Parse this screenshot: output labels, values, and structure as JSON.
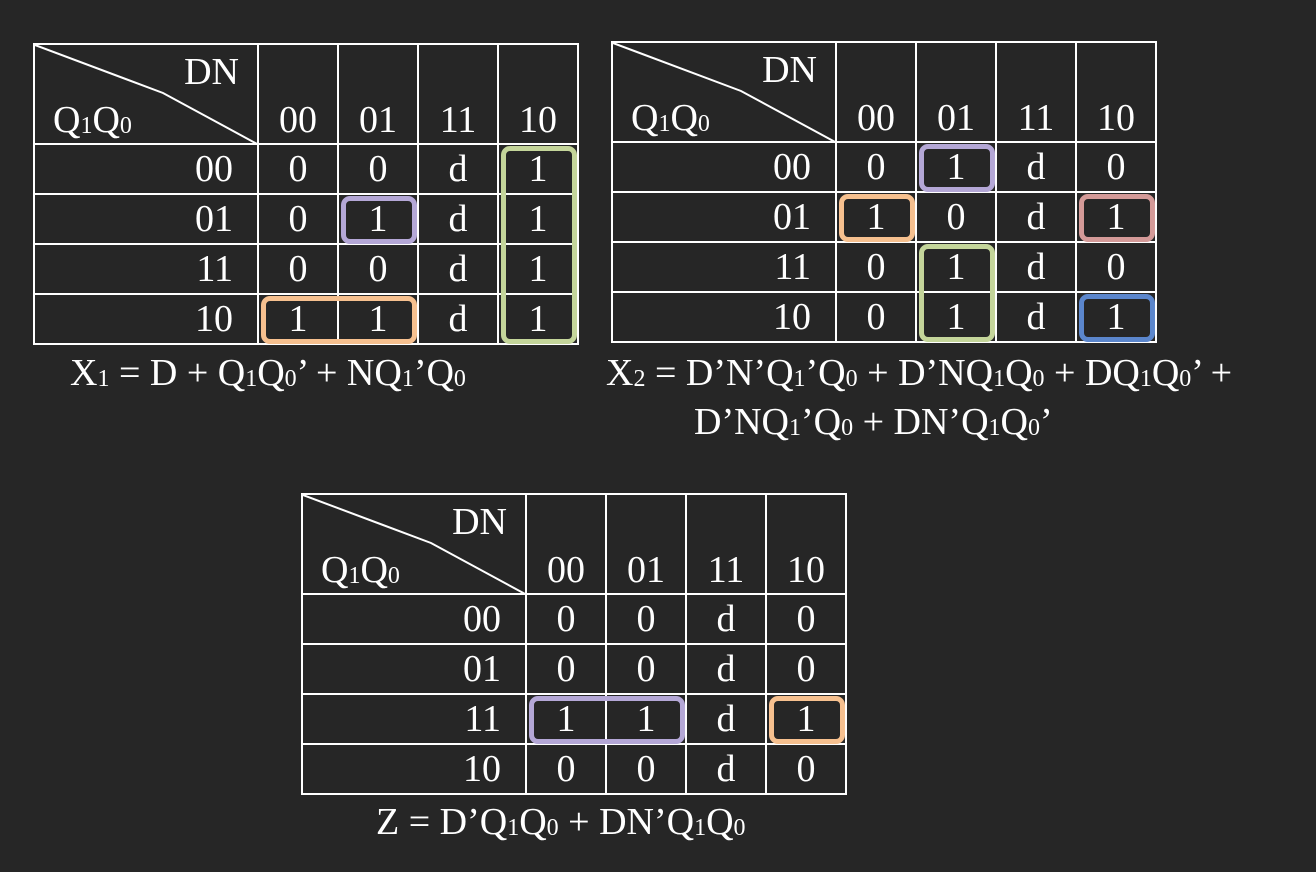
{
  "colors": {
    "background": "#262626",
    "text": "#ffffff",
    "green": "#c4d59a",
    "purple": "#b4a7d6",
    "orange": "#f6c08f",
    "rose": "#d49a98",
    "blue": "#5b86cc"
  },
  "maps": [
    {
      "col_var": "DN",
      "row_var": [
        "Q",
        "1",
        "Q",
        "0"
      ],
      "cols": [
        "00",
        "01",
        "11",
        "10"
      ],
      "rows": [
        "00",
        "01",
        "11",
        "10"
      ],
      "cells": [
        [
          "0",
          "0",
          "d",
          "1"
        ],
        [
          "0",
          "1",
          "d",
          "1"
        ],
        [
          "0",
          "0",
          "d",
          "1"
        ],
        [
          "1",
          "1",
          "d",
          "1"
        ]
      ],
      "groups": [
        {
          "color": "green",
          "r0": 0,
          "c0": 3,
          "r1": 3,
          "c1": 3
        },
        {
          "color": "purple",
          "r0": 1,
          "c0": 1,
          "r1": 1,
          "c1": 1
        },
        {
          "color": "orange",
          "r0": 3,
          "c0": 0,
          "r1": 3,
          "c1": 1
        }
      ],
      "equation": [
        [
          "X",
          "1",
          " = D + Q",
          "1",
          "Q",
          "0",
          "’ + NQ",
          "1",
          "’Q",
          "0"
        ]
      ]
    },
    {
      "col_var": "DN",
      "row_var": [
        "Q",
        "1",
        "Q",
        "0"
      ],
      "cols": [
        "00",
        "01",
        "11",
        "10"
      ],
      "rows": [
        "00",
        "01",
        "11",
        "10"
      ],
      "cells": [
        [
          "0",
          "1",
          "d",
          "0"
        ],
        [
          "1",
          "0",
          "d",
          "1"
        ],
        [
          "0",
          "1",
          "d",
          "0"
        ],
        [
          "0",
          "1",
          "d",
          "1"
        ]
      ],
      "groups": [
        {
          "color": "purple",
          "r0": 0,
          "c0": 1,
          "r1": 0,
          "c1": 1
        },
        {
          "color": "orange",
          "r0": 1,
          "c0": 0,
          "r1": 1,
          "c1": 0
        },
        {
          "color": "rose",
          "r0": 1,
          "c0": 3,
          "r1": 1,
          "c1": 3
        },
        {
          "color": "green",
          "r0": 2,
          "c0": 1,
          "r1": 3,
          "c1": 1
        },
        {
          "color": "blue",
          "r0": 3,
          "c0": 3,
          "r1": 3,
          "c1": 3
        }
      ],
      "equation": [
        [
          "X",
          "2",
          " = D’N’Q",
          "1",
          "’Q",
          "0",
          " + D’NQ",
          "1",
          "Q",
          "0",
          " + DQ",
          "1",
          "Q",
          "0",
          "’ +"
        ],
        [
          "D’NQ",
          "1",
          "’Q",
          "0",
          " + DN’Q",
          "1",
          "Q",
          "0",
          "’"
        ]
      ]
    },
    {
      "col_var": "DN",
      "row_var": [
        "Q",
        "1",
        "Q",
        "0"
      ],
      "cols": [
        "00",
        "01",
        "11",
        "10"
      ],
      "rows": [
        "00",
        "01",
        "11",
        "10"
      ],
      "cells": [
        [
          "0",
          "0",
          "d",
          "0"
        ],
        [
          "0",
          "0",
          "d",
          "0"
        ],
        [
          "1",
          "1",
          "d",
          "1"
        ],
        [
          "0",
          "0",
          "d",
          "0"
        ]
      ],
      "groups": [
        {
          "color": "purple",
          "r0": 2,
          "c0": 0,
          "r1": 2,
          "c1": 1
        },
        {
          "color": "orange",
          "r0": 2,
          "c0": 3,
          "r1": 2,
          "c1": 3
        }
      ],
      "equation": [
        [
          "Z = D’Q",
          "1",
          "Q",
          "0",
          " + DN’Q",
          "1",
          "Q",
          "0"
        ]
      ]
    }
  ]
}
